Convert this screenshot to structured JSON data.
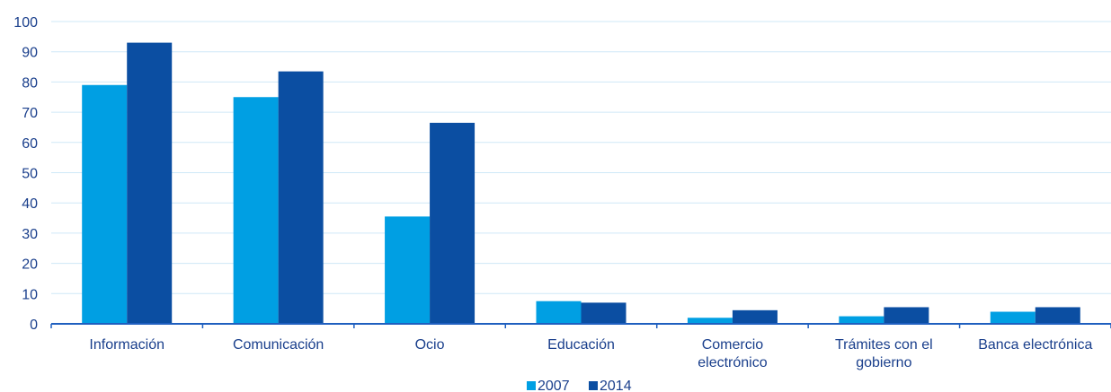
{
  "chart_data": {
    "type": "bar",
    "categories": [
      [
        "Información"
      ],
      [
        "Comunicación"
      ],
      [
        "Ocio"
      ],
      [
        "Educación"
      ],
      [
        "Comercio",
        "electrónico"
      ],
      [
        "Trámites con el",
        "gobierno"
      ],
      [
        "Banca electrónica"
      ]
    ],
    "series": [
      {
        "name": "2007",
        "color": "#009fe3",
        "values": [
          79,
          75,
          35.5,
          7.5,
          2,
          2.5,
          4
        ]
      },
      {
        "name": "2014",
        "color": "#0b4ea2",
        "values": [
          93,
          83.5,
          66.5,
          7,
          4.5,
          5.5,
          5.5
        ]
      }
    ],
    "title": "",
    "xlabel": "",
    "ylabel": "",
    "ylim": [
      0,
      100
    ],
    "yticks": [
      "0",
      "10",
      "20",
      "30",
      "40",
      "50",
      "60",
      "70",
      "80",
      "90",
      "100"
    ],
    "grid": true,
    "legend_position": "bottom-center",
    "colors": {
      "grid": "#cfe8f7",
      "axis": "#1f5fbf",
      "text": "#1a3f8c"
    }
  }
}
